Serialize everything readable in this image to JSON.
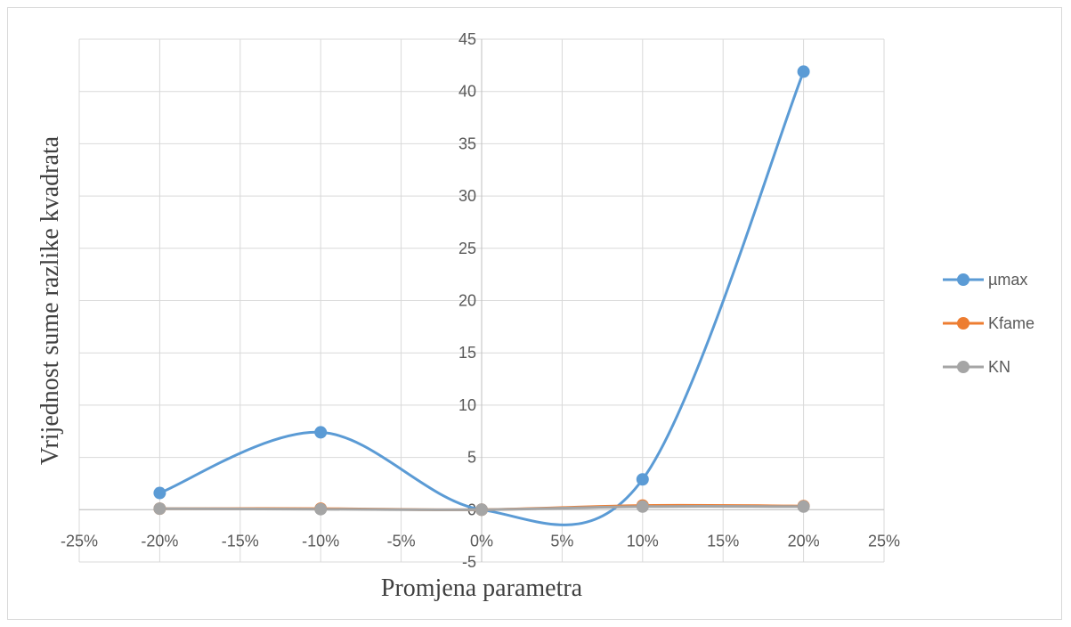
{
  "chart_data": {
    "type": "line",
    "smooth": true,
    "xlabel": "Promjena parametra",
    "ylabel": "Vrijednost sume razlike  kvadrata",
    "xlim": [
      -25,
      25
    ],
    "ylim": [
      -5,
      45
    ],
    "x_ticks": [
      -25,
      -20,
      -15,
      -10,
      -5,
      0,
      5,
      10,
      15,
      20,
      25
    ],
    "x_tick_labels": [
      "-25%",
      "-20%",
      "-15%",
      "-10%",
      "-5%",
      "0%",
      "5%",
      "10%",
      "15%",
      "20%",
      "25%"
    ],
    "y_ticks": [
      -5,
      0,
      5,
      10,
      15,
      20,
      25,
      30,
      35,
      40,
      45
    ],
    "y_tick_labels": [
      "-5",
      "0",
      "5",
      "10",
      "15",
      "20",
      "25",
      "30",
      "35",
      "40",
      "45"
    ],
    "grid": true,
    "legend_position": "right",
    "x": [
      -20,
      -10,
      0,
      10,
      20
    ],
    "series": [
      {
        "name": "µmax",
        "color": "#5b9bd5",
        "values": [
          1.6,
          7.4,
          0.0,
          2.9,
          41.9
        ]
      },
      {
        "name": "Kfame",
        "color": "#ed7d31",
        "values": [
          0.1,
          0.1,
          0.0,
          0.4,
          0.35
        ]
      },
      {
        "name": "KN",
        "color": "#a5a5a5",
        "values": [
          0.1,
          0.05,
          0.0,
          0.3,
          0.3
        ]
      }
    ]
  }
}
